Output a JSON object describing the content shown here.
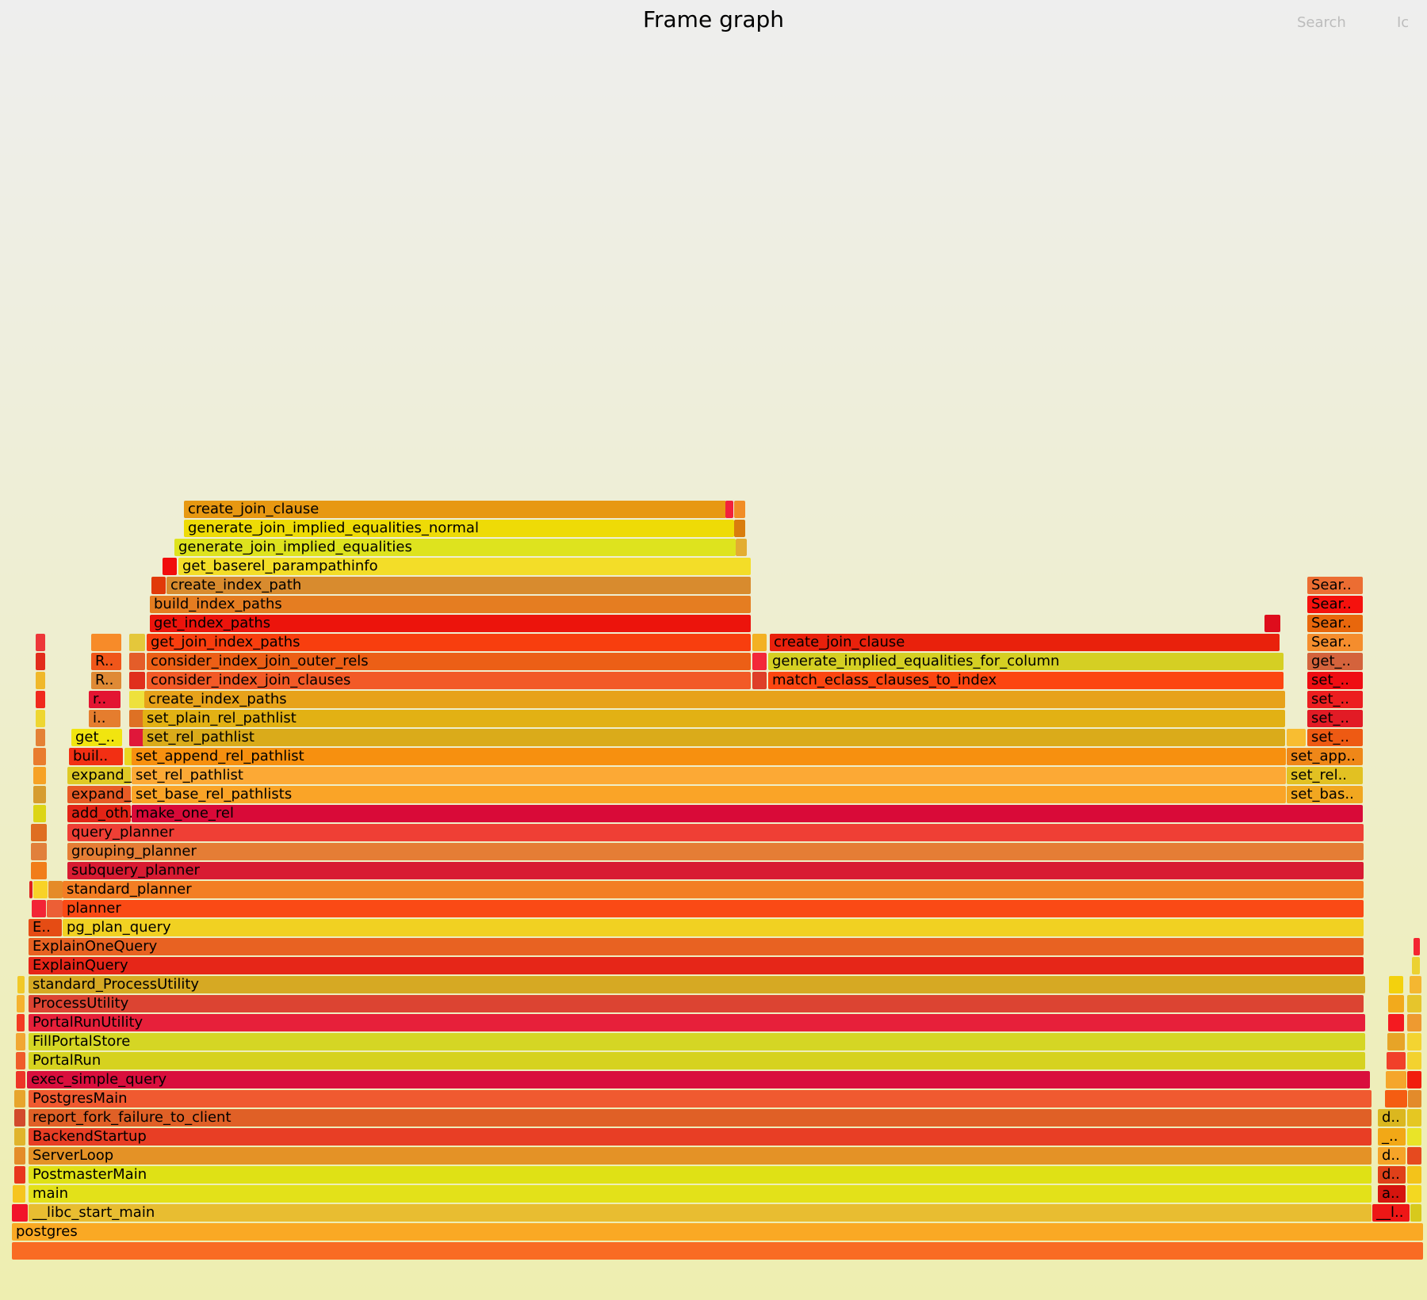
{
  "title": "Frame graph",
  "search_label": "Search",
  "ic_label": "Ic",
  "chart_data": {
    "type": "flamegraph",
    "x_total": 1780,
    "frames": [
      {
        "l": 0,
        "s": 0,
        "w": 1780,
        "c": "#f96b23"
      },
      {
        "l": 1,
        "s": 0,
        "w": 1780,
        "n": "postgres",
        "c": "#faa924"
      },
      {
        "l": 2,
        "s": 0,
        "w": 20,
        "c": "#f2142a"
      },
      {
        "l": 2,
        "s": 21,
        "w": 1694,
        "n": "__libc_start_main",
        "c": "#e8bd31"
      },
      {
        "l": 2,
        "s": 1716,
        "w": 47,
        "n": "__l..",
        "c": "#ee1716"
      },
      {
        "l": 2,
        "s": 1764,
        "w": 14,
        "c": "#d8c91c"
      },
      {
        "l": 3,
        "s": 1,
        "w": 16,
        "c": "#f6c51e"
      },
      {
        "l": 3,
        "s": 21,
        "w": 1694,
        "n": "main",
        "c": "#e3e119"
      },
      {
        "l": 3,
        "s": 1723,
        "w": 35,
        "n": "a..",
        "c": "#d5140e"
      },
      {
        "l": 3,
        "s": 1760,
        "w": 18,
        "c": "#f3d821"
      },
      {
        "l": 4,
        "s": 3,
        "w": 14,
        "c": "#e8361d"
      },
      {
        "l": 4,
        "s": 21,
        "w": 1694,
        "n": "PostmasterMain",
        "c": "#dfe115"
      },
      {
        "l": 4,
        "s": 1723,
        "w": 35,
        "n": "d..",
        "c": "#e04019"
      },
      {
        "l": 4,
        "s": 1760,
        "w": 18,
        "c": "#f3c31a"
      },
      {
        "l": 5,
        "s": 3,
        "w": 14,
        "c": "#e48c29"
      },
      {
        "l": 5,
        "s": 21,
        "w": 1694,
        "n": "ServerLoop",
        "c": "#e49226"
      },
      {
        "l": 5,
        "s": 1723,
        "w": 35,
        "n": "d..",
        "c": "#f6a428"
      },
      {
        "l": 5,
        "s": 1760,
        "w": 18,
        "c": "#e64a1f"
      },
      {
        "l": 6,
        "s": 3,
        "w": 14,
        "c": "#e0b42b"
      },
      {
        "l": 6,
        "s": 21,
        "w": 1694,
        "n": "BackendStartup",
        "c": "#e83e25"
      },
      {
        "l": 6,
        "s": 1723,
        "w": 35,
        "n": "_..",
        "c": "#f2a816"
      },
      {
        "l": 6,
        "s": 1760,
        "w": 18,
        "c": "#e9e428"
      },
      {
        "l": 7,
        "s": 3,
        "w": 14,
        "c": "#d24b2c"
      },
      {
        "l": 7,
        "s": 21,
        "w": 1694,
        "n": "report_fork_failure_to_client",
        "c": "#e06026"
      },
      {
        "l": 7,
        "s": 1723,
        "w": 35,
        "n": "d..",
        "c": "#dbb71f"
      },
      {
        "l": 7,
        "s": 1760,
        "w": 18,
        "c": "#e5c722"
      },
      {
        "l": 8,
        "s": 3,
        "w": 14,
        "c": "#e7a52d"
      },
      {
        "l": 8,
        "s": 21,
        "w": 1694,
        "n": "PostgresMain",
        "c": "#f05a30"
      },
      {
        "l": 8,
        "s": 1732,
        "w": 28,
        "c": "#f55d12"
      },
      {
        "l": 8,
        "s": 1761,
        "w": 17,
        "c": "#e38b2b"
      },
      {
        "l": 9,
        "s": 5,
        "w": 12,
        "c": "#ed3527"
      },
      {
        "l": 9,
        "s": 19,
        "w": 1694,
        "n": "exec_simple_query",
        "c": "#d90f3d"
      },
      {
        "l": 9,
        "s": 1733,
        "w": 26,
        "c": "#f5a62b"
      },
      {
        "l": 9,
        "s": 1760,
        "w": 18,
        "c": "#f11e0d"
      },
      {
        "l": 10,
        "s": 5,
        "w": 12,
        "c": "#ef5c2a"
      },
      {
        "l": 10,
        "s": 21,
        "w": 1686,
        "n": "PortalRun",
        "c": "#d6d21f"
      },
      {
        "l": 10,
        "s": 1734,
        "w": 24,
        "c": "#f1402a"
      },
      {
        "l": 10,
        "s": 1760,
        "w": 18,
        "c": "#f3d22f"
      },
      {
        "l": 11,
        "s": 5,
        "w": 12,
        "c": "#f1a733"
      },
      {
        "l": 11,
        "s": 21,
        "w": 1686,
        "n": "FillPortalStore",
        "c": "#d5d624"
      },
      {
        "l": 11,
        "s": 1735,
        "w": 22,
        "c": "#e7a427"
      },
      {
        "l": 11,
        "s": 1760,
        "w": 18,
        "c": "#f3d431"
      },
      {
        "l": 12,
        "s": 6,
        "w": 10,
        "c": "#f33b22"
      },
      {
        "l": 12,
        "s": 21,
        "w": 1686,
        "n": "PortalRunUtility",
        "c": "#e7203a"
      },
      {
        "l": 12,
        "s": 1736,
        "w": 20,
        "c": "#f41a20"
      },
      {
        "l": 12,
        "s": 1760,
        "w": 18,
        "c": "#ee9a30"
      },
      {
        "l": 13,
        "s": 6,
        "w": 10,
        "c": "#f5b22f"
      },
      {
        "l": 13,
        "s": 21,
        "w": 1684,
        "n": "ProcessUtility",
        "c": "#dc4432"
      },
      {
        "l": 13,
        "s": 1736,
        "w": 20,
        "c": "#f2aa1c"
      },
      {
        "l": 13,
        "s": 1760,
        "w": 18,
        "c": "#e6c52c"
      },
      {
        "l": 14,
        "s": 7,
        "w": 9,
        "c": "#f1c928"
      },
      {
        "l": 14,
        "s": 21,
        "w": 1686,
        "n": "standard_ProcessUtility",
        "c": "#d6a923"
      },
      {
        "l": 14,
        "s": 1737,
        "w": 18,
        "c": "#f3d10d"
      },
      {
        "l": 14,
        "s": 1763,
        "w": 15,
        "c": "#f4b731"
      },
      {
        "l": 15,
        "s": 21,
        "w": 1684,
        "n": "ExplainQuery",
        "c": "#e62618"
      },
      {
        "l": 15,
        "s": 1766,
        "w": 10,
        "c": "#ebd132"
      },
      {
        "l": 16,
        "s": 21,
        "w": 1684,
        "n": "ExplainOneQuery",
        "c": "#e86222"
      },
      {
        "l": 16,
        "s": 1768,
        "w": 8,
        "c": "#f42530"
      },
      {
        "l": 17,
        "s": 21,
        "w": 42,
        "n": "E..",
        "c": "#e54c14"
      },
      {
        "l": 17,
        "s": 64,
        "w": 1641,
        "n": "pg_plan_query",
        "c": "#f1d122"
      },
      {
        "l": 18,
        "s": 25,
        "w": 18,
        "c": "#f32436"
      },
      {
        "l": 18,
        "s": 44,
        "w": 20,
        "c": "#ec5f36"
      },
      {
        "l": 18,
        "s": 64,
        "w": 1641,
        "n": "planner",
        "c": "#fa4a15"
      },
      {
        "l": 19,
        "s": 22,
        "w": 4,
        "c": "#e0201e"
      },
      {
        "l": 19,
        "s": 27,
        "w": 18,
        "c": "#f8d227"
      },
      {
        "l": 19,
        "s": 46,
        "w": 18,
        "c": "#e58b28"
      },
      {
        "l": 19,
        "s": 64,
        "w": 1641,
        "n": "standard_planner",
        "c": "#f37e24"
      },
      {
        "l": 20,
        "s": 24,
        "w": 20,
        "c": "#f17d1a"
      },
      {
        "l": 20,
        "s": 70,
        "w": 1635,
        "n": "subquery_planner",
        "c": "#d81b32"
      },
      {
        "l": 21,
        "s": 24,
        "w": 20,
        "c": "#e1803c"
      },
      {
        "l": 21,
        "s": 70,
        "w": 1635,
        "n": "grouping_planner",
        "c": "#e57d35"
      },
      {
        "l": 22,
        "s": 24,
        "w": 20,
        "c": "#df6e21"
      },
      {
        "l": 22,
        "s": 70,
        "w": 1635,
        "n": "query_planner",
        "c": "#ef3f35"
      },
      {
        "l": 23,
        "s": 27,
        "w": 16,
        "c": "#dcd516"
      },
      {
        "l": 23,
        "s": 70,
        "w": 80,
        "n": "add_oth..",
        "c": "#e32416"
      },
      {
        "l": 23,
        "s": 151,
        "w": 1553,
        "n": "make_one_rel",
        "c": "#d90a38"
      },
      {
        "l": 24,
        "s": 27,
        "w": 16,
        "c": "#d69c2f"
      },
      {
        "l": 24,
        "s": 70,
        "w": 80,
        "n": "expand_..",
        "c": "#e75b25"
      },
      {
        "l": 24,
        "s": 151,
        "w": 1456,
        "n": "set_base_rel_pathlists",
        "c": "#faa427"
      },
      {
        "l": 24,
        "s": 1608,
        "w": 96,
        "n": "set_bas..",
        "c": "#f1a720"
      },
      {
        "l": 25,
        "s": 27,
        "w": 16,
        "c": "#f6a225"
      },
      {
        "l": 25,
        "s": 70,
        "w": 80,
        "n": "expand_..",
        "c": "#dfc925"
      },
      {
        "l": 25,
        "s": 151,
        "w": 1456,
        "n": "set_rel_pathlist",
        "c": "#fca935"
      },
      {
        "l": 25,
        "s": 1608,
        "w": 96,
        "n": "set_rel..",
        "c": "#e2c122"
      },
      {
        "l": 26,
        "s": 27,
        "w": 16,
        "c": "#e97c2e"
      },
      {
        "l": 26,
        "s": 72,
        "w": 68,
        "n": "buil..",
        "c": "#f22f13"
      },
      {
        "l": 26,
        "s": 142,
        "w": 20,
        "c": "#ebd520"
      },
      {
        "l": 26,
        "s": 151,
        "w": 1456,
        "n": "set_append_rel_pathlist",
        "c": "#f7900f"
      },
      {
        "l": 26,
        "s": 1608,
        "w": 96,
        "n": "set_app..",
        "c": "#ef8718"
      },
      {
        "l": 27,
        "s": 30,
        "w": 12,
        "c": "#e48135"
      },
      {
        "l": 27,
        "s": 75,
        "w": 64,
        "n": "get_..",
        "c": "#f1e50f"
      },
      {
        "l": 27,
        "s": 148,
        "w": 20,
        "c": "#e0173a"
      },
      {
        "l": 27,
        "s": 165,
        "w": 1441,
        "n": "set_rel_pathlist",
        "c": "#daab1a"
      },
      {
        "l": 27,
        "s": 1608,
        "w": 24,
        "c": "#f8bd31"
      },
      {
        "l": 27,
        "s": 1634,
        "w": 70,
        "n": "set_..",
        "c": "#ee5a13"
      },
      {
        "l": 28,
        "s": 30,
        "w": 12,
        "c": "#eed630"
      },
      {
        "l": 28,
        "s": 97,
        "w": 40,
        "n": "i..",
        "c": "#e57d2e"
      },
      {
        "l": 28,
        "s": 148,
        "w": 20,
        "c": "#de7124"
      },
      {
        "l": 28,
        "s": 165,
        "w": 1441,
        "n": "set_plain_rel_pathlist",
        "c": "#e2b114"
      },
      {
        "l": 28,
        "s": 1634,
        "w": 70,
        "n": "set_..",
        "c": "#e21b25"
      },
      {
        "l": 29,
        "s": 30,
        "w": 12,
        "c": "#f0291d"
      },
      {
        "l": 29,
        "s": 97,
        "w": 40,
        "n": "r..",
        "c": "#e31432"
      },
      {
        "l": 29,
        "s": 148,
        "w": 20,
        "c": "#eee13c"
      },
      {
        "l": 29,
        "s": 167,
        "w": 1439,
        "n": "create_index_paths",
        "c": "#e7a21a"
      },
      {
        "l": 29,
        "s": 1634,
        "w": 70,
        "n": "set_..",
        "c": "#ec1e1f"
      },
      {
        "l": 30,
        "s": 30,
        "w": 12,
        "c": "#f0b82b"
      },
      {
        "l": 30,
        "s": 100,
        "w": 38,
        "n": "R..",
        "c": "#df8a35"
      },
      {
        "l": 30,
        "s": 148,
        "w": 20,
        "c": "#e02f1c"
      },
      {
        "l": 30,
        "s": 170,
        "w": 762,
        "n": "consider_index_join_clauses",
        "c": "#f25a27"
      },
      {
        "l": 30,
        "s": 934,
        "w": 18,
        "c": "#de3f29"
      },
      {
        "l": 30,
        "s": 954,
        "w": 650,
        "n": "match_eclass_clauses_to_index",
        "c": "#fc4611"
      },
      {
        "l": 30,
        "s": 1634,
        "w": 70,
        "n": "set_..",
        "c": "#ef0d12"
      },
      {
        "l": 31,
        "s": 30,
        "w": 12,
        "c": "#e22c1c"
      },
      {
        "l": 31,
        "s": 100,
        "w": 38,
        "n": "R..",
        "c": "#f0561a"
      },
      {
        "l": 31,
        "s": 148,
        "w": 20,
        "c": "#e45d29"
      },
      {
        "l": 31,
        "s": 170,
        "w": 762,
        "n": "consider_index_join_outer_rels",
        "c": "#ec5f16"
      },
      {
        "l": 31,
        "s": 934,
        "w": 18,
        "c": "#f3283a"
      },
      {
        "l": 31,
        "s": 954,
        "w": 650,
        "n": "generate_implied_equalities_for_column",
        "c": "#d5cf23"
      },
      {
        "l": 31,
        "s": 1634,
        "w": 70,
        "n": "get_..",
        "c": "#d4633c"
      },
      {
        "l": 32,
        "s": 30,
        "w": 12,
        "c": "#ed3739"
      },
      {
        "l": 32,
        "s": 100,
        "w": 38,
        "c": "#f78b29"
      },
      {
        "l": 32,
        "s": 148,
        "w": 20,
        "c": "#e4c73b"
      },
      {
        "l": 32,
        "s": 170,
        "w": 762,
        "n": "get_join_index_paths",
        "c": "#f83e0e"
      },
      {
        "l": 32,
        "s": 934,
        "w": 18,
        "c": "#f3b123"
      },
      {
        "l": 32,
        "s": 956,
        "w": 643,
        "n": "create_join_clause",
        "c": "#e9210c"
      },
      {
        "l": 32,
        "s": 1634,
        "w": 70,
        "n": "Sear..",
        "c": "#f58d2d"
      },
      {
        "l": 33,
        "s": 174,
        "w": 758,
        "n": "get_index_paths",
        "c": "#ec140c"
      },
      {
        "l": 33,
        "s": 1580,
        "w": 20,
        "c": "#de0d1c"
      },
      {
        "l": 33,
        "s": 1634,
        "w": 70,
        "n": "Sear..",
        "c": "#e8670c"
      },
      {
        "l": 34,
        "s": 174,
        "w": 758,
        "n": "build_index_paths",
        "c": "#e57d21"
      },
      {
        "l": 34,
        "s": 1634,
        "w": 70,
        "n": "Sear..",
        "c": "#f5110d"
      },
      {
        "l": 35,
        "s": 176,
        "w": 18,
        "c": "#e13a0a"
      },
      {
        "l": 35,
        "s": 195,
        "w": 737,
        "n": "create_index_path",
        "c": "#d88b2e"
      },
      {
        "l": 35,
        "s": 1634,
        "w": 70,
        "n": "Sear..",
        "c": "#ec6d32"
      },
      {
        "l": 36,
        "s": 190,
        "w": 18,
        "c": "#f10c0c"
      },
      {
        "l": 36,
        "s": 210,
        "w": 722,
        "n": "get_baserel_parampathinfo",
        "c": "#f3dd28"
      },
      {
        "l": 37,
        "s": 205,
        "w": 708,
        "n": "generate_join_implied_equalities",
        "c": "#dee31e"
      },
      {
        "l": 37,
        "s": 913,
        "w": 14,
        "c": "#e3ad31"
      },
      {
        "l": 38,
        "s": 217,
        "w": 694,
        "n": "generate_join_implied_equalities_normal",
        "c": "#eedb06"
      },
      {
        "l": 38,
        "s": 911,
        "w": 14,
        "c": "#d97d0d"
      },
      {
        "l": 39,
        "s": 217,
        "w": 684,
        "n": "create_join_clause",
        "c": "#e79812"
      },
      {
        "l": 39,
        "s": 900,
        "w": 10,
        "c": "#f2213b"
      },
      {
        "l": 39,
        "s": 911,
        "w": 14,
        "c": "#f18d26"
      }
    ]
  }
}
